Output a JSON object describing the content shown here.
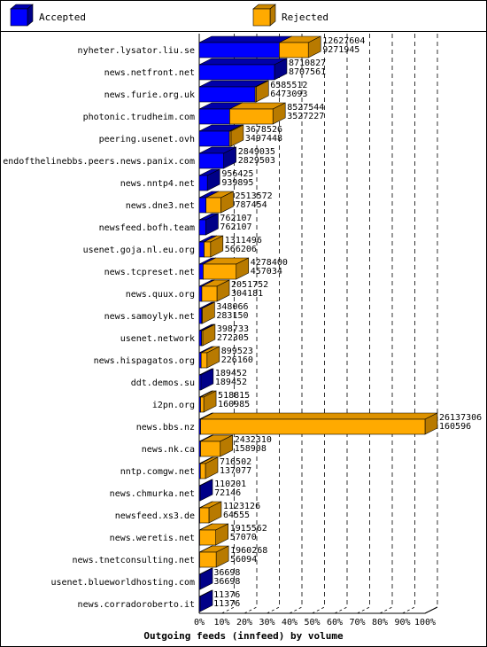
{
  "chart_data": {
    "type": "bar",
    "orientation": "horizontal",
    "title": "Outgoing feeds (innfeed) by volume",
    "legend": {
      "position": "top",
      "items": [
        {
          "name": "Accepted",
          "color": "#0000ff"
        },
        {
          "name": "Rejected",
          "color": "#ffaa00"
        }
      ]
    },
    "x_ticks": [
      "0%",
      "10%",
      "20%",
      "30%",
      "40%",
      "50%",
      "60%",
      "70%",
      "80%",
      "90%",
      "100%"
    ],
    "xlim": [
      0,
      26137306
    ],
    "grid": true,
    "rows": [
      {
        "label": "nyheter.lysator.liu.se",
        "total": 12627604,
        "accepted": 9271945
      },
      {
        "label": "news.netfront.net",
        "total": 8710827,
        "accepted": 8707561
      },
      {
        "label": "news.furie.org.uk",
        "total": 6585512,
        "accepted": 6473093
      },
      {
        "label": "photonic.trudheim.com",
        "total": 8527544,
        "accepted": 3527227
      },
      {
        "label": "peering.usenet.ovh",
        "total": 3678526,
        "accepted": 3497448
      },
      {
        "label": "endofthelinebbs.peers.news.panix.com",
        "total": 2849035,
        "accepted": 2829503
      },
      {
        "label": "news.nntp4.net",
        "total": 956425,
        "accepted": 939895
      },
      {
        "label": "news.dne3.net",
        "total": 2513572,
        "accepted": 787454
      },
      {
        "label": "newsfeed.bofh.team",
        "total": 762107,
        "accepted": 762107
      },
      {
        "label": "usenet.goja.nl.eu.org",
        "total": 1311496,
        "accepted": 566206
      },
      {
        "label": "news.tcpreset.net",
        "total": 4278400,
        "accepted": 457034
      },
      {
        "label": "news.quux.org",
        "total": 2051752,
        "accepted": 304181
      },
      {
        "label": "news.samoylyk.net",
        "total": 348066,
        "accepted": 283150
      },
      {
        "label": "usenet.network",
        "total": 398733,
        "accepted": 272305
      },
      {
        "label": "news.hispagatos.org",
        "total": 899523,
        "accepted": 226160
      },
      {
        "label": "ddt.demos.su",
        "total": 189452,
        "accepted": 189452
      },
      {
        "label": "i2pn.org",
        "total": 518815,
        "accepted": 160985
      },
      {
        "label": "news.bbs.nz",
        "total": 26137306,
        "accepted": 160596
      },
      {
        "label": "news.nk.ca",
        "total": 2432310,
        "accepted": 158908
      },
      {
        "label": "nntp.comgw.net",
        "total": 716502,
        "accepted": 137077
      },
      {
        "label": "news.chmurka.net",
        "total": 110201,
        "accepted": 72146
      },
      {
        "label": "newsfeed.xs3.de",
        "total": 1123126,
        "accepted": 64555
      },
      {
        "label": "news.weretis.net",
        "total": 1915562,
        "accepted": 57070
      },
      {
        "label": "news.tnetconsulting.net",
        "total": 1960268,
        "accepted": 56094
      },
      {
        "label": "usenet.blueworldhosting.com",
        "total": 36698,
        "accepted": 36698
      },
      {
        "label": "news.corradoroberto.it",
        "total": 11376,
        "accepted": 11376
      }
    ]
  }
}
